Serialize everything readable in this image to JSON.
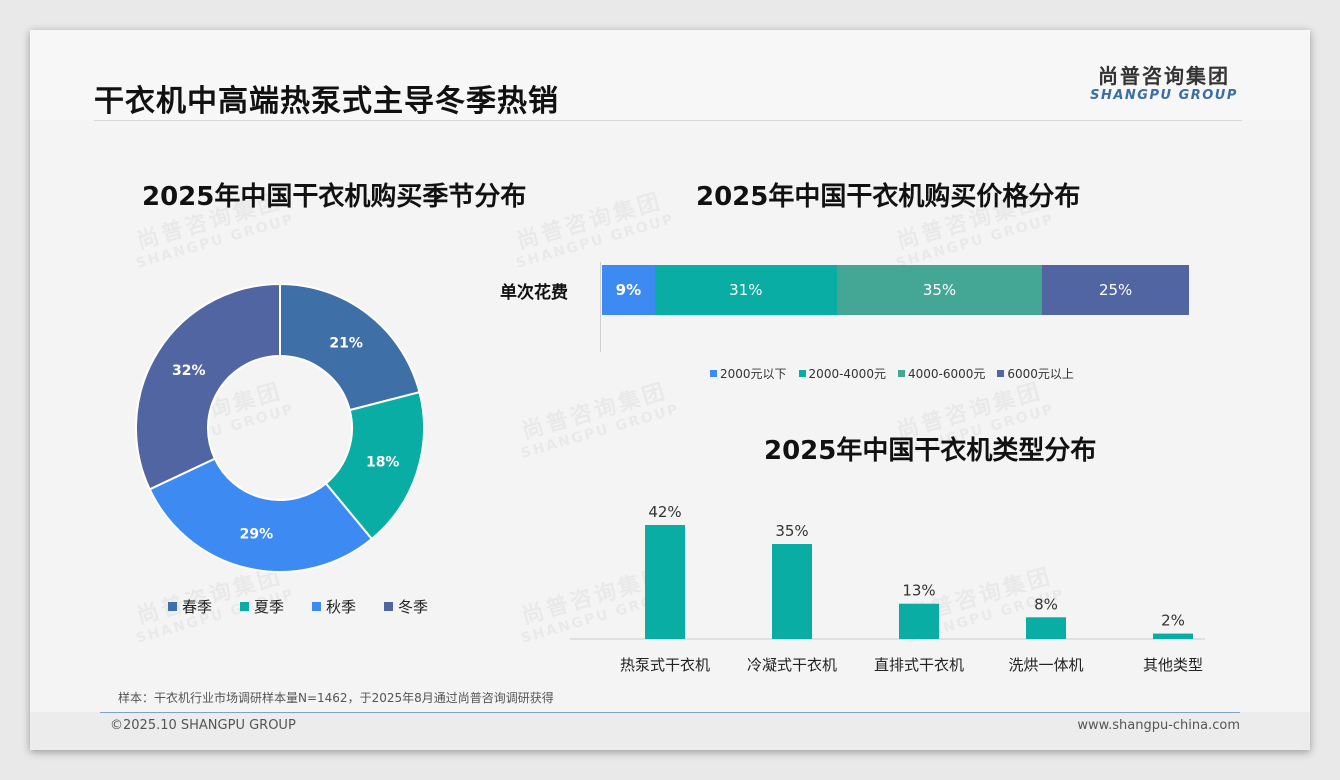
{
  "page": {
    "title": "干衣机中高端热泵式主导冬季热销",
    "logo_cn": "尚普咨询集团",
    "logo_en": "SHANGPU GROUP",
    "footnote": "样本：干衣机行业市场调研样本量N=1462，于2025年8月通过尚普咨询调研获得",
    "copyright": "©2025.10 SHANGPU GROUP",
    "website": "www.shangpu-china.com"
  },
  "chart_data": [
    {
      "type": "pie",
      "title": "2025年中国干衣机购买季节分布",
      "categories": [
        "春季",
        "夏季",
        "秋季",
        "冬季"
      ],
      "values": [
        21,
        18,
        29,
        32
      ],
      "labels": [
        "21%",
        "18%",
        "29%",
        "32%"
      ],
      "colors": [
        "#3e6fa6",
        "#0aada3",
        "#3d8bf2",
        "#5065a2"
      ],
      "legend": "bottom"
    },
    {
      "type": "bar",
      "orientation": "horizontal-stacked",
      "title": "2025年中国干衣机购买价格分布",
      "row_label": "单次花费",
      "categories": [
        "2000元以下",
        "2000-4000元",
        "4000-6000元",
        "6000元以上"
      ],
      "values": [
        9,
        31,
        35,
        25
      ],
      "labels": [
        "9%",
        "31%",
        "35%",
        "25%"
      ],
      "colors": [
        "#3d8bf2",
        "#0aada3",
        "#44a796",
        "#5065a2"
      ],
      "legend": "bottom"
    },
    {
      "type": "bar",
      "title": "2025年中国干衣机类型分布",
      "categories": [
        "热泵式干衣机",
        "冷凝式干衣机",
        "直排式干衣机",
        "洗烘一体机",
        "其他类型"
      ],
      "values": [
        42,
        35,
        13,
        8,
        2
      ],
      "labels": [
        "42%",
        "35%",
        "13%",
        "8%",
        "2%"
      ],
      "color": "#0aada3"
    }
  ]
}
